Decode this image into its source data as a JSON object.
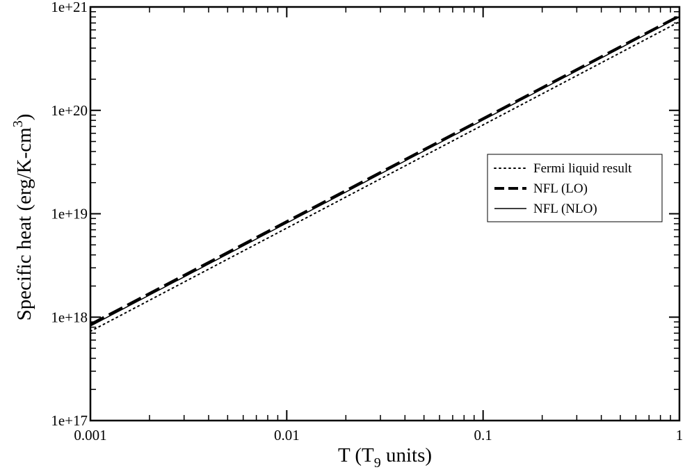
{
  "chart_data": {
    "type": "line",
    "xscale": "log",
    "yscale": "log",
    "xlim": [
      0.001,
      1
    ],
    "ylim": [
      1e+17,
      1e+21
    ],
    "x_ticks": [
      {
        "value": 0.001,
        "label": "0.001"
      },
      {
        "value": 0.01,
        "label": "0.01"
      },
      {
        "value": 0.1,
        "label": "0.1"
      },
      {
        "value": 1,
        "label": "1"
      }
    ],
    "y_ticks": [
      {
        "value": 1e+17,
        "label": "1e+17"
      },
      {
        "value": 1e+18,
        "label": "1e+18"
      },
      {
        "value": 1e+19,
        "label": "1e+19"
      },
      {
        "value": 1e+20,
        "label": "1e+20"
      },
      {
        "value": 1e+21,
        "label": "1e+21"
      }
    ],
    "xlabel": {
      "main": "T (T",
      "sub": "9",
      "rest": " units)"
    },
    "ylabel": {
      "main": "Specific heat (erg/K-cm",
      "sup": "3",
      "rest": ")"
    },
    "grid": false,
    "legend_position": "right",
    "series": [
      {
        "name": "Fermi liquid result",
        "style": "dotted",
        "color": "#000000",
        "x": [
          0.001,
          1
        ],
        "y": [
          7.3e+17,
          7.2e+20
        ]
      },
      {
        "name": "NFL (LO)",
        "style": "dashed",
        "color": "#000000",
        "x": [
          0.001,
          1
        ],
        "y": [
          8.5e+17,
          8.2e+20
        ]
      },
      {
        "name": "NFL (NLO)",
        "style": "solid",
        "color": "#000000",
        "x": [
          0.001,
          1
        ],
        "y": [
          8.2e+17,
          8e+20
        ]
      }
    ]
  }
}
